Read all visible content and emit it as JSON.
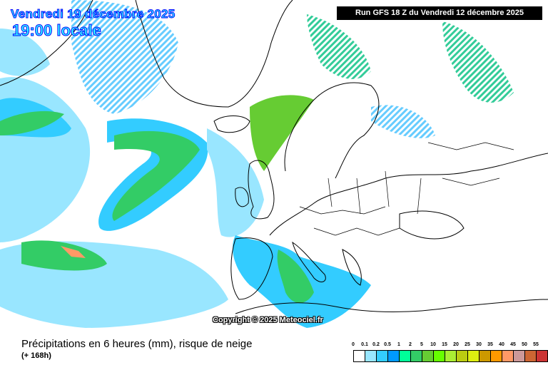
{
  "header": {
    "date": "Vendredi 19 décembre 2025",
    "time": "19:00 locale",
    "run": "Run GFS 18 Z du Vendredi 12 décembre 2025"
  },
  "map": {
    "copyright": "Copyright © 2025 Meteociel.fr",
    "snow_hatch_color": "#33aaff"
  },
  "legend": {
    "title": "Précipitations en 6 heures (mm), risque de neige",
    "subtitle": "(+ 168h)",
    "ticks": [
      "0",
      "0.1",
      "0.2",
      "0.5",
      "1",
      "2",
      "5",
      "10",
      "15",
      "20",
      "25",
      "30",
      "35",
      "40",
      "45",
      "50",
      "55"
    ],
    "colors": [
      "#ffffff",
      "#99e6ff",
      "#33ccff",
      "#0099ff",
      "#00ff99",
      "#33cc66",
      "#66cc33",
      "#66ff00",
      "#aaee33",
      "#bbcc11",
      "#ddee11",
      "#cc9900",
      "#ff9900",
      "#ff9966",
      "#cc9999",
      "#cc6633",
      "#cc3333"
    ]
  }
}
